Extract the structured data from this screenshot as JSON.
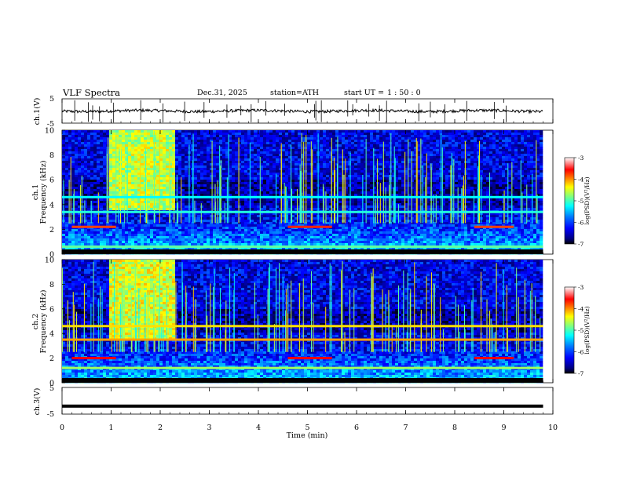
{
  "header": {
    "title": "VLF Spectra",
    "date": "Dec.31, 2025",
    "station": "station=ATH",
    "start_label": "start UT =",
    "start_time": "1 : 50 : 0"
  },
  "colors": {
    "jet": [
      "#000080",
      "#0000ff",
      "#0080ff",
      "#00ffff",
      "#80ff80",
      "#ffff00",
      "#ff8000",
      "#ff0000",
      "#ffffff"
    ],
    "trace": "#000000"
  },
  "chart_data": [
    {
      "type": "line",
      "name": "ch1-waveform",
      "ylabel": "ch.1(V)",
      "ylim": [
        -5,
        5
      ],
      "yticks": [
        "5",
        "-5"
      ],
      "xlim": [
        0,
        10
      ],
      "baseline": 0,
      "x_end": 9.8
    },
    {
      "type": "heatmap",
      "name": "ch1-spectrogram",
      "ylabel": "Frequency (kHz)",
      "channel_label": "ch.1",
      "ylim": [
        0,
        10
      ],
      "yticks": [
        "0",
        "2",
        "4",
        "6",
        "8",
        "10"
      ],
      "xlim": [
        0,
        10
      ],
      "x_end": 9.8,
      "colorbar": {
        "label": "log(PSD)(V²/Hz)",
        "ticks": [
          "-3",
          "-4",
          "-5",
          "-6",
          "-7"
        ],
        "range": [
          -7,
          -3
        ]
      },
      "events": [
        {
          "x0": 0.9,
          "x1": 2.3,
          "f0": 3.5,
          "f1": 10,
          "level": -4.7
        }
      ],
      "lines": [
        {
          "f": 2.2,
          "x0": 0.2,
          "x1": 1.1,
          "level": -3.9
        },
        {
          "f": 2.2,
          "x0": 4.6,
          "x1": 5.5,
          "level": -3.8
        },
        {
          "f": 2.2,
          "x0": 8.4,
          "x1": 9.2,
          "level": -3.9
        },
        {
          "f": 4.6,
          "x0": 0,
          "x1": 9.8,
          "level": -5.3
        },
        {
          "f": 3.4,
          "x0": 0,
          "x1": 9.8,
          "level": -5.2
        },
        {
          "f": 0.6,
          "x0": 0,
          "x1": 9.8,
          "level": -5.0
        }
      ]
    },
    {
      "type": "heatmap",
      "name": "ch2-spectrogram",
      "ylabel": "Frequency (kHz)",
      "channel_label": "ch.2",
      "ylim": [
        0,
        10
      ],
      "yticks": [
        "0",
        "2",
        "4",
        "6",
        "8",
        "10"
      ],
      "xlim": [
        0,
        10
      ],
      "x_end": 9.8,
      "colorbar": {
        "label": "log(PSD)(V²/Hz)",
        "ticks": [
          "-3",
          "-4",
          "-5",
          "-6",
          "-7"
        ],
        "range": [
          -7,
          -3
        ]
      },
      "events": [
        {
          "x0": 0.9,
          "x1": 2.3,
          "f0": 3.5,
          "f1": 10,
          "level": -4.6
        }
      ],
      "lines": [
        {
          "f": 2.0,
          "x0": 0.2,
          "x1": 1.1,
          "level": -3.7
        },
        {
          "f": 2.0,
          "x0": 4.6,
          "x1": 5.5,
          "level": -3.7
        },
        {
          "f": 2.0,
          "x0": 8.4,
          "x1": 9.2,
          "level": -3.7
        },
        {
          "f": 4.6,
          "x0": 0,
          "x1": 9.8,
          "level": -4.4
        },
        {
          "f": 3.5,
          "x0": 0,
          "x1": 9.8,
          "level": -4.2
        },
        {
          "f": 1.2,
          "x0": 0,
          "x1": 9.8,
          "level": -4.8
        }
      ]
    },
    {
      "type": "line",
      "name": "ch3-waveform",
      "ylabel": "ch.3(V)",
      "ylim": [
        -5,
        5
      ],
      "yticks": [
        "5",
        "-5"
      ],
      "xlim": [
        0,
        10
      ],
      "baseline": -2,
      "x_end": 9.8
    }
  ],
  "xaxis": {
    "label": "Time (min)",
    "ticks": [
      "0",
      "1",
      "2",
      "3",
      "4",
      "5",
      "6",
      "7",
      "8",
      "9",
      "10"
    ]
  }
}
